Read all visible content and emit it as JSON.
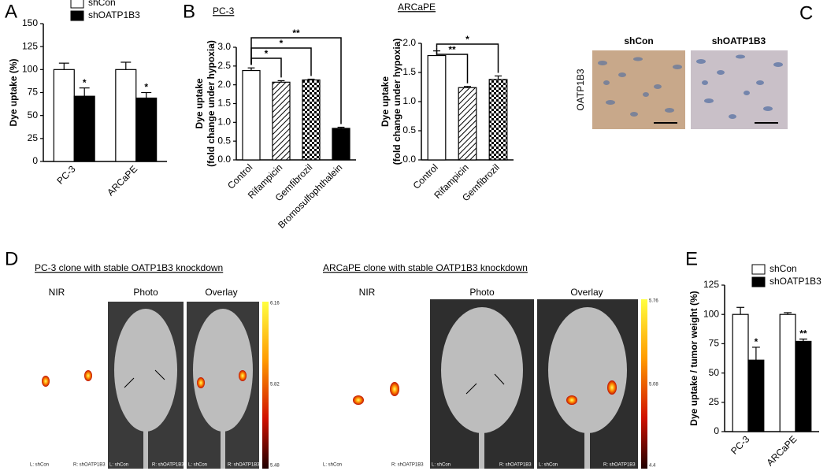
{
  "figure": {
    "panels": [
      "A",
      "B",
      "C",
      "D",
      "E"
    ],
    "C": {
      "columns": [
        "shCon",
        "shOATP1B3"
      ],
      "row": "OATP1B3"
    },
    "D": {
      "left": {
        "title": "PC-3 clone with stable OATP1B3 knockdown",
        "views": [
          "NIR",
          "Photo",
          "Overlay"
        ],
        "colorbar": [
          "6.16",
          "5.82",
          "5.48"
        ],
        "left_label": "L: shCon",
        "right_label": "R: shOATP1B3"
      },
      "right": {
        "title": "ARCaPE clone with stable OATP1B3 knockdown",
        "views": [
          "NIR",
          "Photo",
          "Overlay"
        ],
        "colorbar": [
          "5.76",
          "5.08",
          "4.4"
        ],
        "left_label": "L: shCon",
        "right_label": "R: shOATP1B3"
      }
    }
  },
  "chart_data": [
    {
      "type": "bar",
      "ylabel": [
        "Dye uptake (%)"
      ],
      "categories": [
        "PC-3",
        "ARCaPE"
      ],
      "series": [
        {
          "name": "shCon",
          "color": "#ffffff",
          "values": [
            100,
            100
          ],
          "errors": [
            7,
            8
          ],
          "stars": [
            null,
            null
          ]
        },
        {
          "name": "shOATP1B3",
          "color": "#000000",
          "values": [
            71,
            69
          ],
          "errors": [
            9,
            6
          ],
          "stars": [
            "*",
            "*"
          ]
        }
      ],
      "ylim": [
        0,
        150
      ],
      "yticks": [
        0,
        25,
        50,
        75,
        100,
        125,
        150
      ],
      "legend": "top-left"
    },
    {
      "type": "bar",
      "title": "PC-3",
      "ylabel": [
        "Dye uptake",
        "(fold change under hypoxia)"
      ],
      "categories": [
        "Control",
        "Rifampicin",
        "Gemfibrozil",
        "Bromosulfophthalein"
      ],
      "values": [
        2.38,
        2.07,
        2.13,
        0.84
      ],
      "errors": [
        0.07,
        0.04,
        0.02,
        0.03
      ],
      "fills": [
        "white",
        "hatch",
        "check",
        "black"
      ],
      "brackets": [
        {
          "from": 0,
          "to": 1,
          "label": "*"
        },
        {
          "from": 0,
          "to": 2,
          "label": "*"
        },
        {
          "from": 0,
          "to": 3,
          "label": "**"
        }
      ],
      "ylim": [
        0,
        3
      ],
      "yticks": [
        {
          "value": 0,
          "label": "0.0"
        },
        0.5,
        {
          "value": 1,
          "label": "1.0"
        },
        1.5,
        {
          "value": 2,
          "label": "2.0"
        },
        2.5,
        {
          "value": 3,
          "label": "3.0"
        }
      ]
    },
    {
      "type": "bar",
      "title": "ARCaPE",
      "ylabel": [
        "Dye uptake",
        "(fold change under hypoxia)"
      ],
      "categories": [
        "Control",
        "Rifampicin",
        "Gemfibrozil"
      ],
      "values": [
        1.79,
        1.24,
        1.38
      ],
      "errors": [
        0.08,
        0.02,
        0.06
      ],
      "fills": [
        "white",
        "hatch",
        "check"
      ],
      "brackets": [
        {
          "from": 0,
          "to": 1,
          "label": "**"
        },
        {
          "from": 0,
          "to": 2,
          "label": "*"
        }
      ],
      "ylim": [
        0,
        2
      ],
      "yticks": [
        {
          "value": 0,
          "label": "0.0"
        },
        0.5,
        {
          "value": 1,
          "label": "1.0"
        },
        1.5,
        {
          "value": 2,
          "label": "2.0"
        }
      ]
    },
    {
      "type": "bar",
      "ylabel": [
        "Dye uptake / tumor weight (%)"
      ],
      "categories": [
        "PC-3",
        "ARCaPE"
      ],
      "series": [
        {
          "name": "shCon",
          "color": "#ffffff",
          "values": [
            100,
            100
          ],
          "errors": [
            6,
            1.5
          ],
          "stars": [
            null,
            null
          ]
        },
        {
          "name": "shOATP1B3",
          "color": "#000000",
          "values": [
            61,
            77
          ],
          "errors": [
            11,
            2
          ],
          "stars": [
            "*",
            "**"
          ]
        }
      ],
      "ylim": [
        0,
        125
      ],
      "yticks": [
        0,
        25,
        50,
        75,
        100,
        125
      ],
      "legend": "top-left"
    }
  ]
}
